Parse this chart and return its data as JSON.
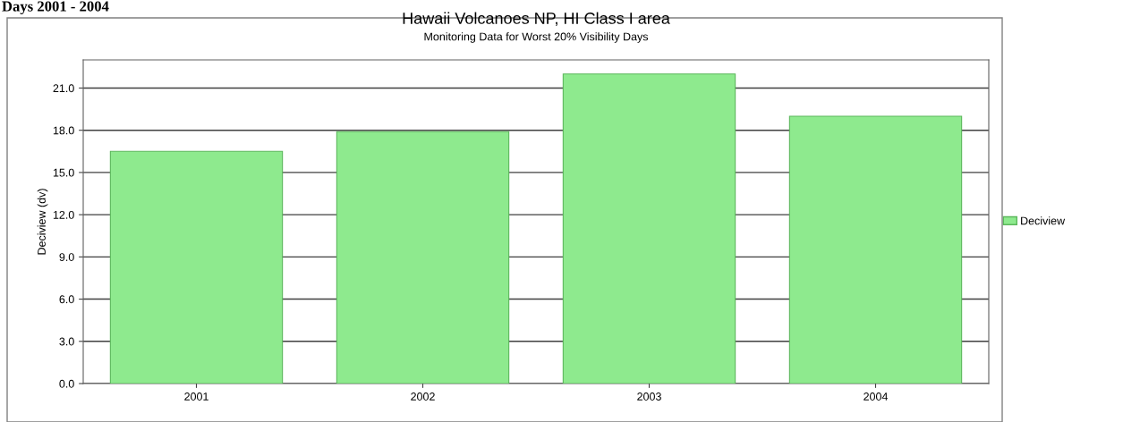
{
  "chart_data": {
    "type": "bar",
    "title": "Hawaii Volcanoes NP, HI Class I area",
    "subtitle": "Monitoring Data for Worst 20% Visibility Days",
    "ylabel": "Deciview (dv)",
    "annotations": [
      "Days 2001 - 2004"
    ],
    "categories": [
      "2001",
      "2002",
      "2003",
      "2004"
    ],
    "series": [
      {
        "name": "Deciview",
        "color": "#8eea8e",
        "values": [
          16.5,
          17.9,
          22.0,
          19.0
        ]
      }
    ],
    "ylim": [
      0,
      23
    ],
    "yticks": [
      {
        "value": 0,
        "label": "0.0"
      },
      {
        "value": 3,
        "label": "3.0"
      },
      {
        "value": 6,
        "label": "6.0"
      },
      {
        "value": 9,
        "label": "9.0"
      },
      {
        "value": 12,
        "label": "12.0"
      },
      {
        "value": 15,
        "label": "15.0"
      },
      {
        "value": 18,
        "label": "18.0"
      },
      {
        "value": 21,
        "label": "21.0"
      }
    ],
    "grid": "y",
    "legend": "right"
  }
}
